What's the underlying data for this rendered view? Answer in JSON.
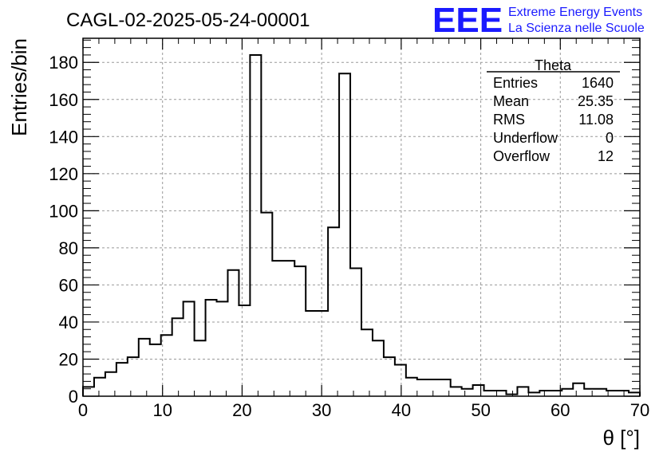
{
  "header": {
    "run_title": "CAGL-02-2025-05-24-00001",
    "logo_text": "EEE",
    "logo_line1": "Extreme Energy Events",
    "logo_line2": "La Scienza nelle Scuole"
  },
  "stats": {
    "title": "Theta",
    "rows": [
      {
        "label": "Entries",
        "value": "1640"
      },
      {
        "label": "Mean",
        "value": "25.35"
      },
      {
        "label": "RMS",
        "value": "11.08"
      },
      {
        "label": "Underflow",
        "value": "0"
      },
      {
        "label": "Overflow",
        "value": "12"
      }
    ]
  },
  "colors": {
    "logo": "#1a1aff",
    "line": "#000000",
    "grid": "#999999"
  },
  "chart_data": {
    "type": "bar",
    "style": "step-histogram",
    "xlabel": "θ [°]",
    "ylabel": "Entries/bin",
    "xlim": [
      0,
      70
    ],
    "ylim": [
      0,
      193
    ],
    "grid": true,
    "bin_width": 1.4,
    "x_ticks": [
      "0",
      "10",
      "20",
      "30",
      "40",
      "50",
      "60",
      "70"
    ],
    "y_ticks": [
      "0",
      "20",
      "40",
      "60",
      "80",
      "100",
      "120",
      "140",
      "160",
      "180"
    ],
    "values": [
      5,
      10,
      13,
      18,
      21,
      31,
      28,
      33,
      42,
      51,
      30,
      52,
      51,
      68,
      49,
      184,
      99,
      73,
      73,
      70,
      46,
      46,
      91,
      174,
      69,
      36,
      30,
      21,
      17,
      10,
      9,
      9,
      9,
      5,
      4,
      6,
      3,
      3,
      1,
      5,
      2,
      3,
      3,
      4,
      7,
      4,
      4,
      3,
      3,
      2
    ]
  }
}
